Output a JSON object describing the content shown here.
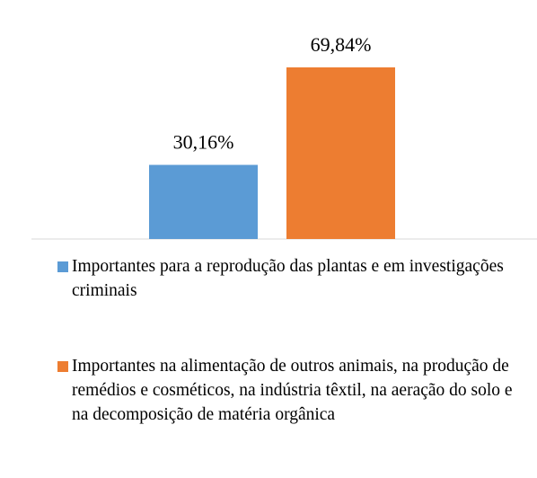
{
  "chart_data": {
    "type": "bar",
    "categories": [
      null
    ],
    "series": [
      {
        "name": "Importantes para a reprodução das plantas e em investigações criminais",
        "color": "#5b9bd5",
        "values": [
          30.16
        ],
        "value_labels": [
          "30,16%"
        ]
      },
      {
        "name": "Importantes na alimentação de outros animais, na produção de remédios e cosméticos, na indústria têxtil, na aeração do solo e na decomposição de matéria orgânica",
        "color": "#ed7d31",
        "values": [
          69.84
        ],
        "value_labels": [
          "69,84%"
        ]
      }
    ],
    "ylim": [
      0,
      80
    ],
    "legend": "bottom"
  }
}
